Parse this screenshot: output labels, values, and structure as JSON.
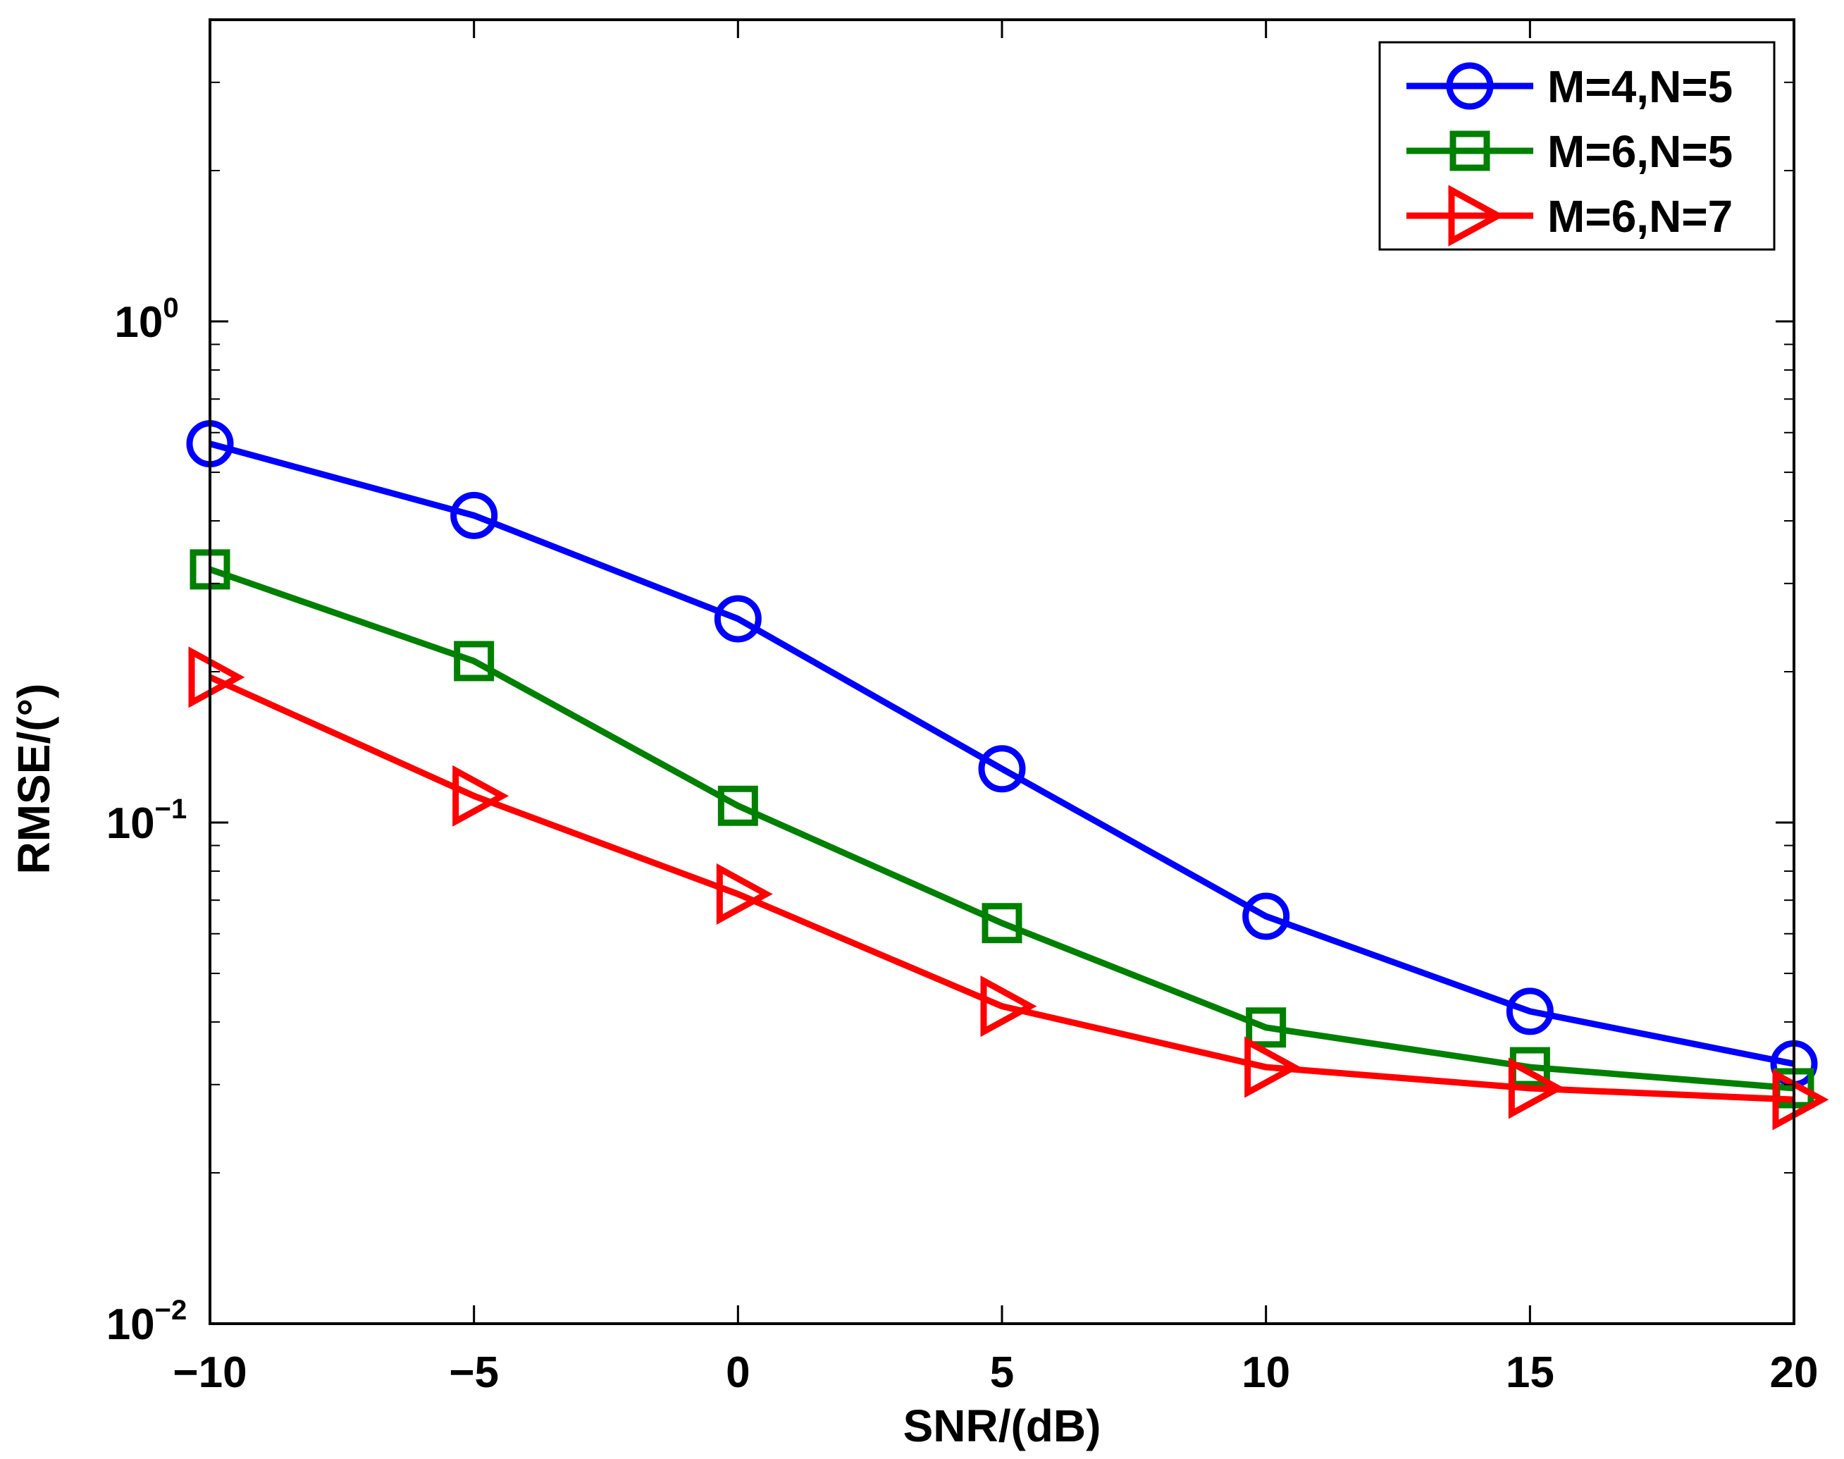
{
  "chart_data": {
    "type": "line",
    "title": "",
    "xlabel": "SNR/(dB)",
    "ylabel": "RMSE/(°)",
    "x": [
      -10,
      -5,
      0,
      5,
      10,
      15,
      20
    ],
    "xlim": [
      -10,
      20
    ],
    "xticks": [
      -10,
      -5,
      0,
      5,
      10,
      15,
      20
    ],
    "xtick_labels": [
      "−10",
      "−5",
      "0",
      "5",
      "10",
      "15",
      "20"
    ],
    "yscale": "log",
    "ylim": [
      0.01,
      4
    ],
    "yticks": [
      0.01,
      0.1,
      1
    ],
    "ytick_labels": [
      {
        "base": "10",
        "exp": "−2"
      },
      {
        "base": "10",
        "exp": "−1"
      },
      {
        "base": "10",
        "exp": "0"
      }
    ],
    "grid": false,
    "legend_position": "top-right",
    "series": [
      {
        "name": "M=4,N=5",
        "color": "#0000ff",
        "marker": "circle",
        "values": [
          0.57,
          0.41,
          0.255,
          0.128,
          0.065,
          0.042,
          0.033
        ]
      },
      {
        "name": "M=6,N=5",
        "color": "#008000",
        "marker": "square",
        "values": [
          0.32,
          0.21,
          0.108,
          0.063,
          0.039,
          0.0325,
          0.0295
        ]
      },
      {
        "name": "M=6,N=7",
        "color": "#ff0000",
        "marker": "triangle-right",
        "values": [
          0.195,
          0.113,
          0.072,
          0.043,
          0.0325,
          0.0295,
          0.028
        ]
      }
    ]
  }
}
